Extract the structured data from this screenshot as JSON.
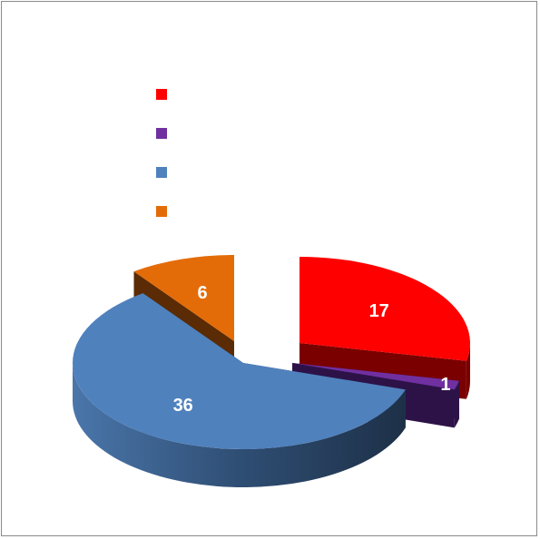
{
  "chart_data": {
    "type": "pie",
    "style": "3d-exploded",
    "title": "",
    "legend_position": "top-left",
    "slices": [
      {
        "name": "",
        "value": 17,
        "label": "17",
        "color": "#ff0000",
        "side_color": "#7a0000"
      },
      {
        "name": "",
        "value": 1,
        "label": "1",
        "color": "#7030a0",
        "side_color": "#2d1248"
      },
      {
        "name": "",
        "value": 36,
        "label": "36",
        "color": "#4f81bd",
        "side_color": "#1f3550"
      },
      {
        "name": "",
        "value": 6,
        "label": "6",
        "color": "#e36c09",
        "side_color": "#5a2b04"
      }
    ]
  }
}
